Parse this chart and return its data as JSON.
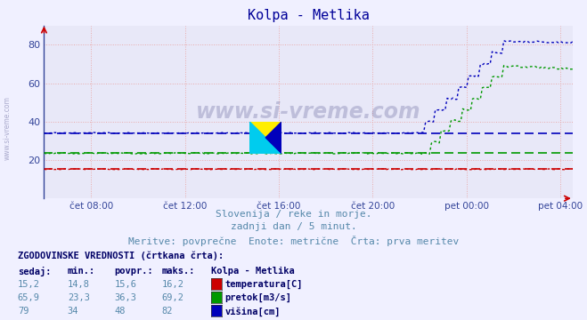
{
  "title": "Kolpa - Metlika",
  "title_color": "#000099",
  "bg_color": "#f0f0ff",
  "plot_bg_color": "#e8e8f8",
  "grid_color_x": "#ddaaaa",
  "grid_color_y": "#ddaaaa",
  "xlim": [
    6.0,
    28.5
  ],
  "ylim": [
    0,
    90
  ],
  "yticks": [
    20,
    40,
    60,
    80
  ],
  "xtick_labels": [
    "čet 08:00",
    "čet 12:00",
    "čet 16:00",
    "čet 20:00",
    "pet 00:00",
    "pet 04:00"
  ],
  "xtick_positions": [
    8,
    12,
    16,
    20,
    24,
    28
  ],
  "subtitle_lines": [
    "Slovenija / reke in morje.",
    "zadnji dan / 5 minut.",
    "Meritve: povprečne  Enote: metrične  Črta: prva meritev"
  ],
  "legend_title": "ZGODOVINSKE VREDNOSTI (črtkana črta):",
  "legend_headers": [
    "sedaj:",
    "min.:",
    "povpr.:",
    "maks.:",
    "Kolpa - Metlika"
  ],
  "legend_rows": [
    [
      "15,2",
      "14,8",
      "15,6",
      "16,2",
      "temperatura[C]"
    ],
    [
      "65,9",
      "23,3",
      "36,3",
      "69,2",
      "pretok[m3/s]"
    ],
    [
      "79",
      "34",
      "48",
      "82",
      "višina[cm]"
    ]
  ],
  "legend_colors": [
    "#cc0000",
    "#009900",
    "#0000bb"
  ],
  "temp_color": "#cc0000",
  "flow_color": "#009900",
  "height_color": "#0000bb",
  "temp_avg": 15.6,
  "flow_avg": 23.5,
  "height_avg": 34.0,
  "temp_flat": 15.2,
  "flow_flat": 23.5,
  "height_flat": 34.0,
  "flow_peak": 69.2,
  "height_peak": 82.0,
  "rise_start": 22.0,
  "rise_end": 25.5,
  "flow_plateau": 69.0,
  "height_plateau": 82.0
}
